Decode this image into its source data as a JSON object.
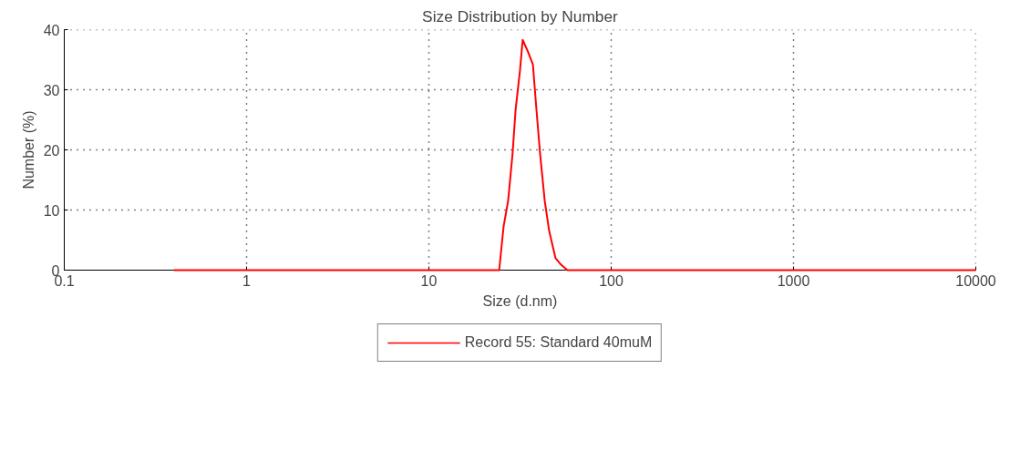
{
  "chart_data": {
    "type": "line",
    "title": "Size Distribution by Number",
    "xlabel": "Size (d.nm)",
    "ylabel": "Number (%)",
    "log": "x",
    "grid": true,
    "legend": "bottom",
    "marker": "none",
    "line_style": "solid",
    "xlim": [
      0.1,
      10000
    ],
    "xticks": [
      0.1,
      1,
      10,
      100,
      1000,
      10000
    ],
    "ylim": [
      0,
      40
    ],
    "yticks": [
      0,
      10,
      20,
      30,
      40
    ],
    "series": [
      {
        "name": "Record 55: Standard 40muM",
        "color": "#ff0000",
        "x": [
          0.4,
          24.3,
          25.7,
          27.2,
          28.8,
          29.9,
          31.6,
          32.7,
          35.1,
          37.2,
          38.9,
          40.7,
          43.2,
          45.7,
          49.5,
          53.1,
          57.5,
          10000
        ],
        "values": [
          0,
          0,
          7.3,
          11.5,
          19.5,
          26.7,
          33.2,
          38.3,
          36.2,
          34.2,
          26.7,
          19.5,
          11.5,
          6.5,
          2.0,
          0.9,
          0,
          0
        ]
      }
    ]
  }
}
